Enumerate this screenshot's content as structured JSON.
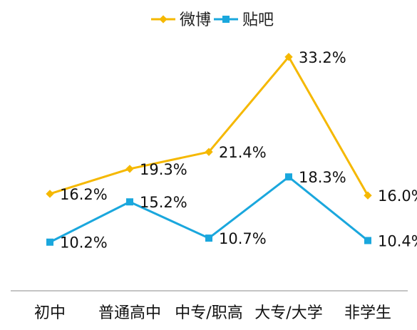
{
  "chart_data": {
    "type": "line",
    "categories": [
      "初中",
      "普通高中",
      "中专/职高",
      "大专/大学",
      "非学生"
    ],
    "series": [
      {
        "name": "微博",
        "values": [
          16.2,
          19.3,
          21.4,
          33.2,
          16.0
        ],
        "labels": [
          "16.2%",
          "19.3%",
          "21.4%",
          "33.2%",
          "16.0%"
        ],
        "color": "#F5B800",
        "marker": "diamond"
      },
      {
        "name": "贴吧",
        "values": [
          10.2,
          15.2,
          10.7,
          18.3,
          10.4
        ],
        "labels": [
          "10.2%",
          "15.2%",
          "10.7%",
          "18.3%",
          "10.4%"
        ],
        "color": "#1AA7DD",
        "marker": "square"
      }
    ],
    "title": "",
    "xlabel": "",
    "ylabel": "",
    "ylim": [
      0,
      35
    ],
    "grid": false,
    "legend_position": "top-center",
    "axis_color": "#888888"
  }
}
